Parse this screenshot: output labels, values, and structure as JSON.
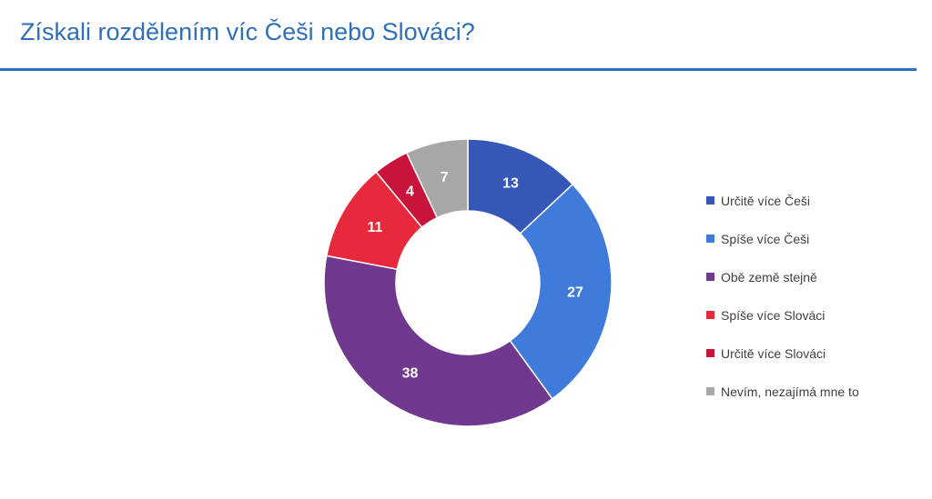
{
  "title": "Získali rozdělením víc Češi nebo Slováci?",
  "chart_data": {
    "type": "pie",
    "donut": true,
    "legend_position": "right",
    "series": [
      {
        "name": "Určitě více Češi",
        "value": 13,
        "color": "#3557b7"
      },
      {
        "name": "Spíše více Češi",
        "value": 27,
        "color": "#3f7bdb"
      },
      {
        "name": "Obě země stejně",
        "value": 38,
        "color": "#71388f"
      },
      {
        "name": "Spíše více Slováci",
        "value": 11,
        "color": "#e6293b"
      },
      {
        "name": "Určitě více Slováci",
        "value": 4,
        "color": "#c8143a"
      },
      {
        "name": "Nevím, nezajímá mne to",
        "value": 7,
        "color": "#a7a7a7"
      }
    ]
  }
}
